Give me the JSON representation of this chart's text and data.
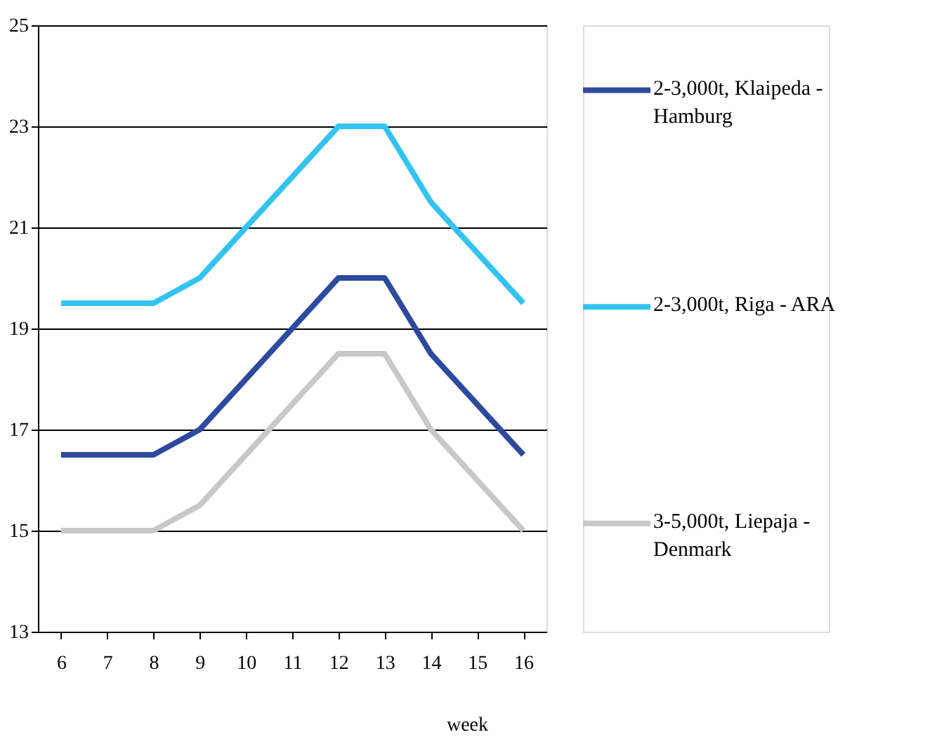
{
  "chart_data": {
    "type": "line",
    "xlabel": "week",
    "categories": [
      "6",
      "7",
      "8",
      "9",
      "10",
      "11",
      "12",
      "13",
      "14",
      "15",
      "16"
    ],
    "series": [
      {
        "name": "2-3,000t, Klaipeda - Hamburg",
        "color": "#2e4a9e",
        "values": [
          16.5,
          16.5,
          16.5,
          17,
          18,
          19,
          20,
          20,
          18.5,
          17.5,
          16.5
        ]
      },
      {
        "name": "2-3,000t, Riga - ARA",
        "color": "#33c3f0",
        "values": [
          19.5,
          19.5,
          19.5,
          20,
          21,
          22,
          23,
          23,
          21.5,
          20.5,
          19.5
        ]
      },
      {
        "name": "3-5,000t, Liepaja - Denmark",
        "color": "#c8c8c8",
        "values": [
          15,
          15,
          15,
          15.5,
          16.5,
          17.5,
          18.5,
          18.5,
          17,
          16,
          15
        ]
      }
    ],
    "ylim": [
      13,
      25
    ],
    "yticks": [
      13,
      15,
      17,
      19,
      21,
      23,
      25
    ],
    "grid": "y",
    "legend": "right",
    "marker": "none",
    "line_style": "solid"
  }
}
